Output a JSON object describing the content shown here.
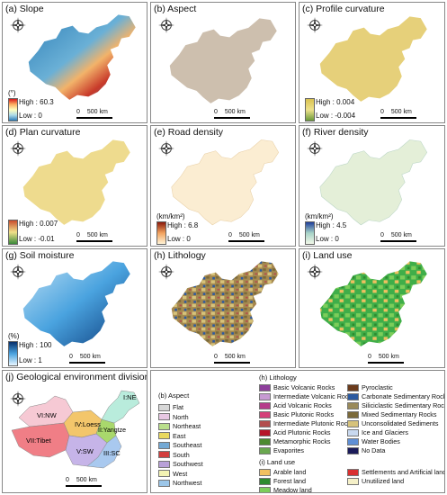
{
  "panels": {
    "a": {
      "title": "(a) Slope",
      "unit": "(°)",
      "high": "High : 60.3",
      "low": "Low : 0",
      "ramp": [
        "#d7191c",
        "#fdae61",
        "#ffffbf",
        "#abd9e9",
        "#2c7bb6"
      ],
      "fill": "#2f7fb7"
    },
    "b": {
      "title": "(b) Aspect",
      "fill": "#cdbfae"
    },
    "c": {
      "title": "(c) Profile curvature",
      "high": "High : 0.004",
      "low": "Low : -0.004",
      "ramp": [
        "#d9c24f",
        "#eee28c",
        "#6a9a3a"
      ],
      "fill": "#e6d07a"
    },
    "d": {
      "title": "(d) Plan curvature",
      "high": "High : 0.007",
      "low": "Low : -0.01",
      "ramp": [
        "#c84b2b",
        "#f1e08a",
        "#3a8a3a"
      ],
      "fill": "#eedb8e"
    },
    "e": {
      "title": "(e) Road density",
      "unit": "(km/km²)",
      "high": "High : 6.8",
      "low": "Low : 0",
      "ramp": [
        "#8b1a0c",
        "#f2a35e",
        "#fff3d6"
      ],
      "fill": "#fbedd2"
    },
    "f": {
      "title": "(f) River density",
      "unit": "(km/km²)",
      "high": "High : 4.5",
      "low": "Low : 0",
      "ramp": [
        "#1f3e9a",
        "#a8d4c8",
        "#f1f8e8"
      ],
      "fill": "#e4efd8"
    },
    "g": {
      "title": "(g) Soil moisture",
      "unit": "(%)",
      "high": "High : 100",
      "low": "Low : 1",
      "ramp": [
        "#08306b",
        "#4aa3df",
        "#e8f6ff"
      ],
      "fill": "#3f97d4"
    },
    "h": {
      "title": "(h) Lithology",
      "fill": "#a5894f"
    },
    "i": {
      "title": "(i) Land use",
      "fill": "#3fae49"
    },
    "j": {
      "title": "(j) Geological environment division",
      "regions": [
        "VI:NW",
        "VII:Tibet",
        "IV:Loess",
        "II:Yangtze",
        "V:SW",
        "III:SC",
        "I:NE"
      ]
    }
  },
  "scale": {
    "zero": "0",
    "distance": "500 km"
  },
  "aspect_legend": {
    "title": "(b) Aspect",
    "items": [
      {
        "label": "Flat",
        "color": "#d8d8d8"
      },
      {
        "label": "North",
        "color": "#e6c7e2"
      },
      {
        "label": "Northeast",
        "color": "#b9df8b"
      },
      {
        "label": "East",
        "color": "#e8d85f"
      },
      {
        "label": "Southeast",
        "color": "#74a9d4"
      },
      {
        "label": "South",
        "color": "#d33f3f"
      },
      {
        "label": "Southwest",
        "color": "#b8a0d8"
      },
      {
        "label": "West",
        "color": "#f3f3b3"
      },
      {
        "label": "Northwest",
        "color": "#9cc6e8"
      }
    ]
  },
  "lithology_legend": {
    "title": "(h) Lithology",
    "col1": [
      {
        "label": "Basic Volcanic Rocks",
        "color": "#8e3f9c"
      },
      {
        "label": "Intermediate Volcanic Rocks",
        "color": "#c79ad3"
      },
      {
        "label": "Acid Volcanic Rocks",
        "color": "#b63a8a"
      },
      {
        "label": "Basic Plutonic Rocks",
        "color": "#d5407a"
      },
      {
        "label": "Intermediate Plutonic Rocks",
        "color": "#b24d4d"
      },
      {
        "label": "Acid Plutonic Rocks",
        "color": "#b7142a"
      },
      {
        "label": "Metamorphic Rocks",
        "color": "#4c8a2f"
      },
      {
        "label": "Evaporites",
        "color": "#6aa84f"
      }
    ],
    "col2": [
      {
        "label": "Pyroclastic",
        "color": "#6b3b1c"
      },
      {
        "label": "Carbonate Sedimentary Rocks",
        "color": "#2c5aa0"
      },
      {
        "label": "Siliciclastic Sedimentary Rocks",
        "color": "#9a8a5a"
      },
      {
        "label": "Mixed Sedimentary Rocks",
        "color": "#7b6a3a"
      },
      {
        "label": "Unconsolidated Sediments",
        "color": "#d6c27a"
      },
      {
        "label": "Ice and Glaciers",
        "color": "#c9d9ef"
      },
      {
        "label": "Water Bodies",
        "color": "#5f8fd6"
      },
      {
        "label": "No Data",
        "color": "#1b1b5a"
      }
    ]
  },
  "landuse_legend": {
    "title": "(i) Land use",
    "items": [
      {
        "label": "Arable land",
        "color": "#f0c060"
      },
      {
        "label": "Settlements and Artificial land",
        "color": "#d93030"
      },
      {
        "label": "Forest land",
        "color": "#2e8b2e"
      },
      {
        "label": "Unutilized land",
        "color": "#f5f0c8"
      },
      {
        "label": "Meadow land",
        "color": "#7ccd5a"
      }
    ]
  },
  "division_colors": [
    "#f6c9d4",
    "#f07e86",
    "#f3c66b",
    "#a9d86c",
    "#c6b4e8",
    "#a9c9ef",
    "#b9ecdc"
  ]
}
